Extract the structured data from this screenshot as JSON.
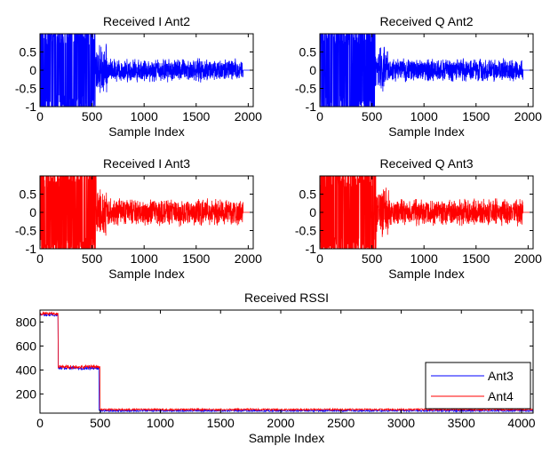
{
  "chart_data": [
    {
      "type": "line",
      "title": "Received I Ant2",
      "xlabel": "Sample Index",
      "ylabel": "",
      "xlim": [
        0,
        2048
      ],
      "ylim": [
        -1,
        1
      ],
      "xticks": [
        0,
        500,
        1000,
        1500,
        2000
      ],
      "yticks": [
        -1,
        -0.5,
        0,
        0.5
      ],
      "ytick_labels": [
        "-1",
        "-0.5",
        "0",
        "0.5"
      ],
      "series": [
        {
          "color": "#0000ff",
          "segments": [
            {
              "x_start": 0,
              "x_end": 530,
              "amplitude": 1.0
            },
            {
              "x_start": 530,
              "x_end": 650,
              "amplitude": 0.75
            },
            {
              "x_start": 650,
              "x_end": 1950,
              "amplitude": 0.35
            },
            {
              "x_start": 1950,
              "x_end": 2048,
              "amplitude": 0.0
            }
          ]
        }
      ]
    },
    {
      "type": "line",
      "title": "Received Q Ant2",
      "xlabel": "Sample Index",
      "ylabel": "",
      "xlim": [
        0,
        2048
      ],
      "ylim": [
        -1,
        1
      ],
      "xticks": [
        0,
        500,
        1000,
        1500,
        2000
      ],
      "yticks": [
        -1,
        -0.5,
        0,
        0.5
      ],
      "ytick_labels": [
        "-1",
        "-0.5",
        "0",
        "0.5"
      ],
      "series": [
        {
          "color": "#0000ff",
          "segments": [
            {
              "x_start": 0,
              "x_end": 530,
              "amplitude": 1.0
            },
            {
              "x_start": 530,
              "x_end": 650,
              "amplitude": 0.75
            },
            {
              "x_start": 650,
              "x_end": 1950,
              "amplitude": 0.35
            },
            {
              "x_start": 1950,
              "x_end": 2048,
              "amplitude": 0.0
            }
          ]
        }
      ]
    },
    {
      "type": "line",
      "title": "Received I Ant3",
      "xlabel": "Sample Index",
      "ylabel": "",
      "xlim": [
        0,
        2048
      ],
      "ylim": [
        -1,
        1
      ],
      "xticks": [
        0,
        500,
        1000,
        1500,
        2000
      ],
      "yticks": [
        -1,
        -0.5,
        0,
        0.5
      ],
      "ytick_labels": [
        "-1",
        "-0.5",
        "0",
        "0.5"
      ],
      "series": [
        {
          "color": "#ff0000",
          "segments": [
            {
              "x_start": 0,
              "x_end": 540,
              "amplitude": 1.0
            },
            {
              "x_start": 540,
              "x_end": 660,
              "amplitude": 0.75
            },
            {
              "x_start": 660,
              "x_end": 1950,
              "amplitude": 0.4
            },
            {
              "x_start": 1950,
              "x_end": 2048,
              "amplitude": 0.0
            }
          ]
        }
      ]
    },
    {
      "type": "line",
      "title": "Received Q Ant3",
      "xlabel": "Sample Index",
      "ylabel": "",
      "xlim": [
        0,
        2048
      ],
      "ylim": [
        -1,
        1
      ],
      "xticks": [
        0,
        500,
        1000,
        1500,
        2000
      ],
      "yticks": [
        -1,
        -0.5,
        0,
        0.5
      ],
      "ytick_labels": [
        "-1",
        "-0.5",
        "0",
        "0.5"
      ],
      "series": [
        {
          "color": "#ff0000",
          "segments": [
            {
              "x_start": 0,
              "x_end": 540,
              "amplitude": 1.0
            },
            {
              "x_start": 540,
              "x_end": 660,
              "amplitude": 0.75
            },
            {
              "x_start": 660,
              "x_end": 1950,
              "amplitude": 0.4
            },
            {
              "x_start": 1950,
              "x_end": 2048,
              "amplitude": 0.0
            }
          ]
        }
      ]
    },
    {
      "type": "line",
      "title": "Received RSSI",
      "xlabel": "Sample Index",
      "ylabel": "",
      "xlim": [
        0,
        4096
      ],
      "ylim": [
        40,
        900
      ],
      "xticks": [
        0,
        500,
        1000,
        1500,
        2000,
        2500,
        3000,
        3500,
        4000
      ],
      "yticks": [
        200,
        400,
        600,
        800
      ],
      "ytick_labels": [
        "200",
        "400",
        "600",
        "800"
      ],
      "legend": "bottom-right",
      "series": [
        {
          "name": "Ant3",
          "color": "#0000ff",
          "levels": [
            {
              "x_start": 0,
              "x_end": 150,
              "value": 860
            },
            {
              "x_start": 150,
              "x_end": 490,
              "value": 415
            },
            {
              "x_start": 490,
              "x_end": 4096,
              "value": 60
            }
          ]
        },
        {
          "name": "Ant4",
          "color": "#ff0000",
          "levels": [
            {
              "x_start": 0,
              "x_end": 150,
              "value": 870
            },
            {
              "x_start": 150,
              "x_end": 500,
              "value": 425
            },
            {
              "x_start": 500,
              "x_end": 4096,
              "value": 70
            }
          ]
        }
      ]
    }
  ]
}
